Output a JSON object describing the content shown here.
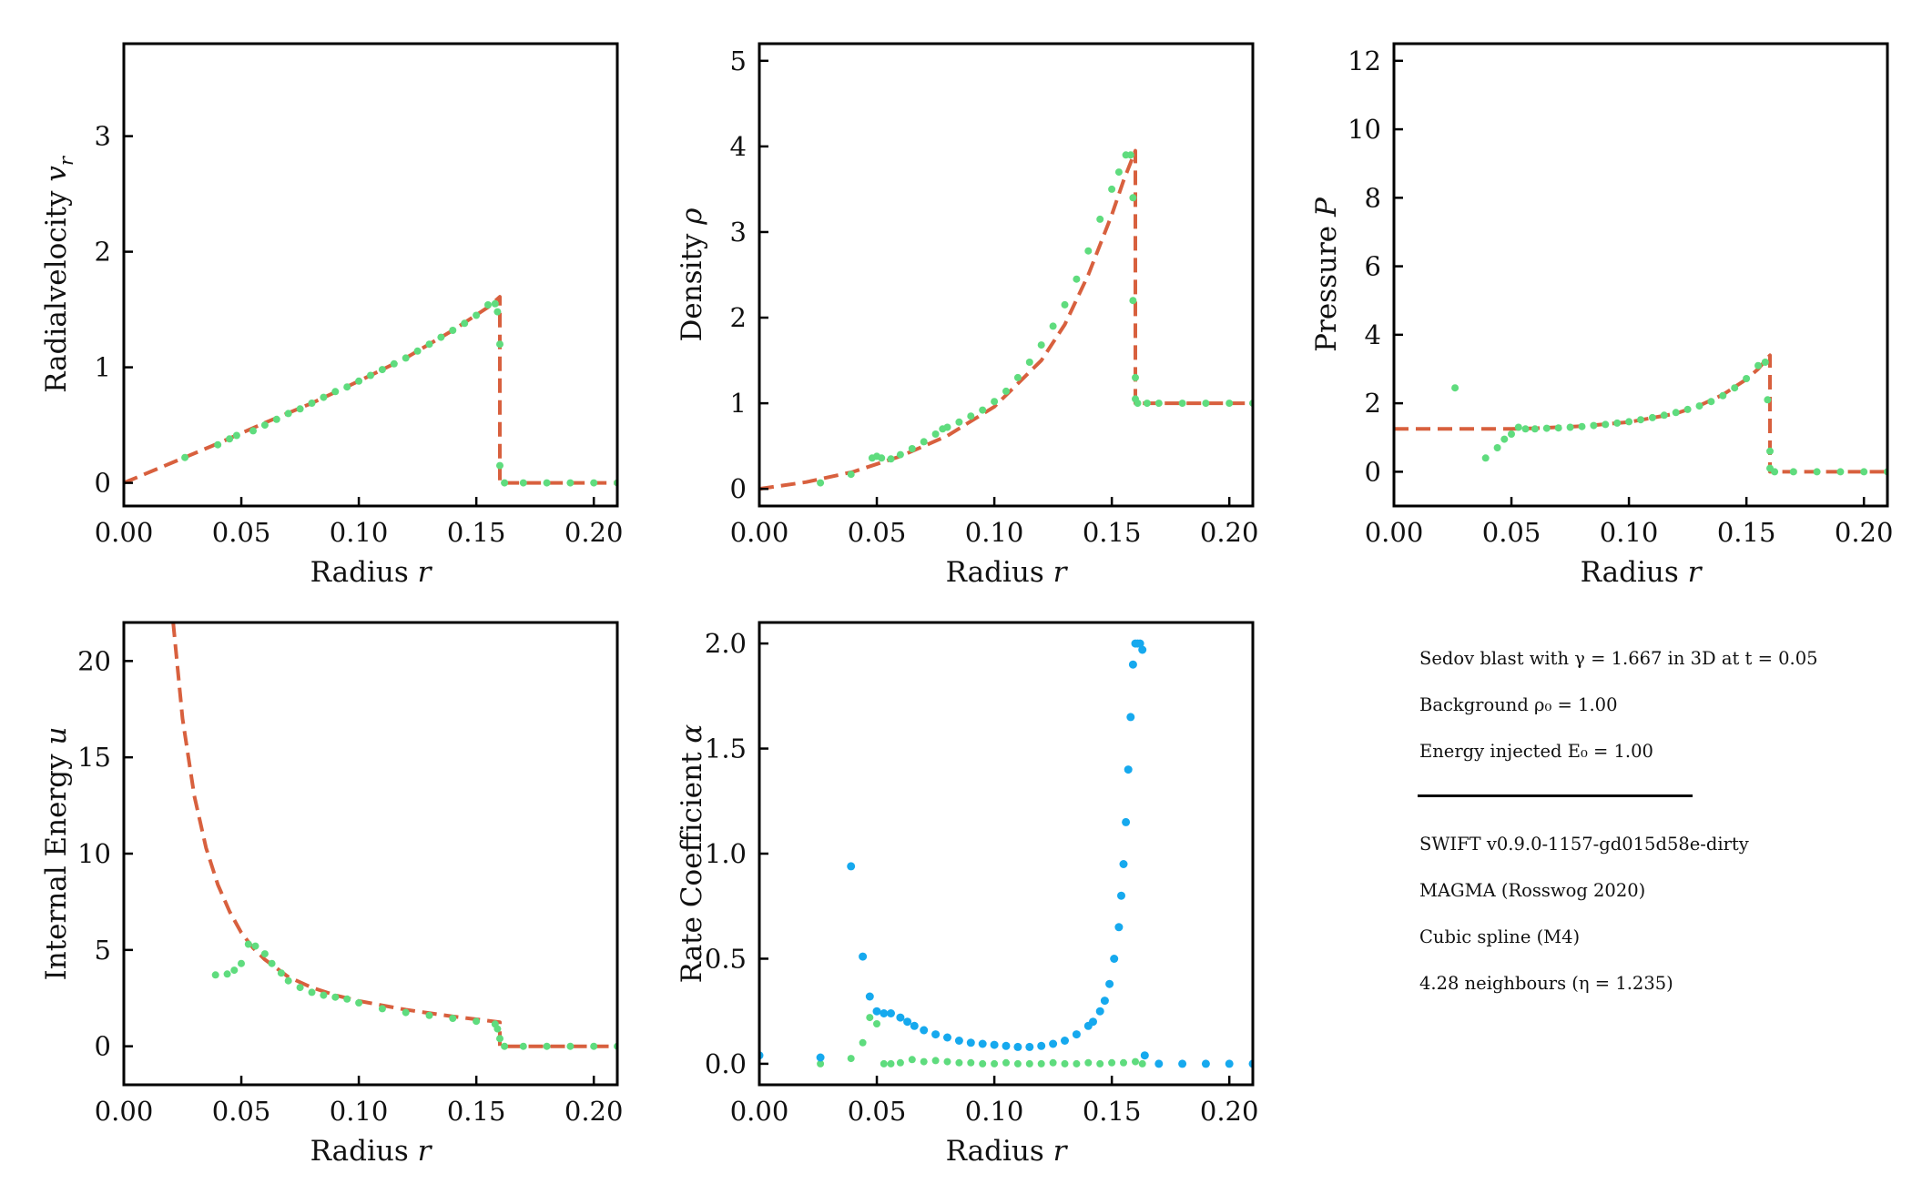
{
  "colors": {
    "analytic": "#d8603e",
    "simulation": "#5fdc7e",
    "alpha_points": "#16a9ee",
    "axes": "#000000"
  },
  "info": {
    "line1": "Sedov blast with  γ = 1.667 in 3D at t = 0.05",
    "line2": "Background ρ₀ = 1.00",
    "line3": "Energy injected E₀ = 1.00",
    "line4": "SWIFT v0.9.0-1157-gd015d58e-dirty",
    "line5": "MAGMA (Rosswog 2020)",
    "line6": "Cubic spline (M4)",
    "line7": "4.28 neighbours (η = 1.235)"
  },
  "chart_data": [
    {
      "type": "line",
      "id": "velocity",
      "xlabel": "Radius r",
      "ylabel": "Radialvelocity v",
      "ylabel_sub": "r",
      "xlim": [
        0,
        0.21
      ],
      "ylim": [
        -0.2,
        3.8
      ],
      "xticks": [
        "0.00",
        "0.05",
        "0.10",
        "0.15",
        "0.20"
      ],
      "xtick_values": [
        0,
        0.05,
        0.1,
        0.15,
        0.2
      ],
      "yticks": [
        "0",
        "1",
        "2",
        "3"
      ],
      "ytick_values": [
        0,
        1,
        2,
        3
      ],
      "analytic": {
        "x": [
          0,
          0.02,
          0.04,
          0.06,
          0.08,
          0.1,
          0.12,
          0.14,
          0.155,
          0.16,
          0.16,
          0.21
        ],
        "y": [
          0,
          0.17,
          0.34,
          0.52,
          0.69,
          0.88,
          1.08,
          1.32,
          1.52,
          1.61,
          0,
          0
        ]
      },
      "points": {
        "x": [
          0.026,
          0.04,
          0.045,
          0.048,
          0.055,
          0.06,
          0.065,
          0.07,
          0.075,
          0.08,
          0.085,
          0.09,
          0.095,
          0.1,
          0.105,
          0.11,
          0.115,
          0.12,
          0.125,
          0.13,
          0.135,
          0.14,
          0.145,
          0.15,
          0.155,
          0.158,
          0.159,
          0.16,
          0.16,
          0.162,
          0.17,
          0.18,
          0.19,
          0.2,
          0.21
        ],
        "y": [
          0.22,
          0.33,
          0.38,
          0.41,
          0.45,
          0.5,
          0.55,
          0.6,
          0.64,
          0.69,
          0.74,
          0.79,
          0.83,
          0.88,
          0.93,
          0.98,
          1.03,
          1.08,
          1.14,
          1.2,
          1.26,
          1.32,
          1.38,
          1.45,
          1.54,
          1.55,
          1.48,
          1.2,
          0.15,
          0,
          0,
          0,
          0,
          0,
          0
        ]
      }
    },
    {
      "type": "line",
      "id": "density",
      "xlabel": "Radius r",
      "ylabel": "Density ρ",
      "xlim": [
        0,
        0.21
      ],
      "ylim": [
        -0.2,
        5.2
      ],
      "xticks": [
        "0.00",
        "0.05",
        "0.10",
        "0.15",
        "0.20"
      ],
      "xtick_values": [
        0,
        0.05,
        0.1,
        0.15,
        0.2
      ],
      "yticks": [
        "0",
        "1",
        "2",
        "3",
        "4",
        "5"
      ],
      "ytick_values": [
        0,
        1,
        2,
        3,
        4,
        5
      ],
      "analytic": {
        "x": [
          0,
          0.02,
          0.04,
          0.06,
          0.08,
          0.1,
          0.12,
          0.13,
          0.14,
          0.15,
          0.155,
          0.16,
          0.16,
          0.21
        ],
        "y": [
          0,
          0.08,
          0.2,
          0.38,
          0.62,
          0.96,
          1.5,
          1.92,
          2.5,
          3.2,
          3.6,
          3.95,
          1,
          1
        ]
      },
      "points": {
        "x": [
          0.026,
          0.039,
          0.048,
          0.05,
          0.052,
          0.056,
          0.06,
          0.065,
          0.07,
          0.075,
          0.078,
          0.08,
          0.085,
          0.09,
          0.095,
          0.1,
          0.105,
          0.11,
          0.115,
          0.12,
          0.125,
          0.13,
          0.135,
          0.14,
          0.145,
          0.15,
          0.153,
          0.156,
          0.158,
          0.159,
          0.159,
          0.16,
          0.16,
          0.161,
          0.165,
          0.17,
          0.18,
          0.19,
          0.2,
          0.21
        ],
        "y": [
          0.07,
          0.17,
          0.36,
          0.38,
          0.36,
          0.35,
          0.4,
          0.47,
          0.55,
          0.64,
          0.7,
          0.72,
          0.78,
          0.85,
          0.92,
          1.02,
          1.14,
          1.3,
          1.48,
          1.68,
          1.9,
          2.15,
          2.45,
          2.78,
          3.15,
          3.5,
          3.7,
          3.9,
          3.9,
          3.4,
          2.2,
          1.3,
          1.05,
          1,
          1,
          1,
          1,
          1,
          1,
          1
        ]
      }
    },
    {
      "type": "line",
      "id": "pressure",
      "xlabel": "Radius r",
      "ylabel": "Pressure P",
      "xlim": [
        0,
        0.21
      ],
      "ylim": [
        -1,
        12.5
      ],
      "xticks": [
        "0.00",
        "0.05",
        "0.10",
        "0.15",
        "0.20"
      ],
      "xtick_values": [
        0,
        0.05,
        0.1,
        0.15,
        0.2
      ],
      "yticks": [
        "0",
        "2",
        "4",
        "6",
        "8",
        "10",
        "12"
      ],
      "ytick_values": [
        0,
        2,
        4,
        6,
        8,
        10,
        12
      ],
      "analytic": {
        "x": [
          0,
          0.04,
          0.05,
          0.06,
          0.08,
          0.1,
          0.12,
          0.13,
          0.14,
          0.15,
          0.155,
          0.16,
          0.16,
          0.21
        ],
        "y": [
          1.25,
          1.25,
          1.25,
          1.27,
          1.33,
          1.45,
          1.7,
          1.93,
          2.25,
          2.7,
          3.0,
          3.4,
          0,
          0
        ]
      },
      "points": {
        "x": [
          0.026,
          0.039,
          0.044,
          0.047,
          0.05,
          0.053,
          0.056,
          0.06,
          0.065,
          0.07,
          0.075,
          0.08,
          0.085,
          0.09,
          0.095,
          0.1,
          0.105,
          0.11,
          0.115,
          0.12,
          0.125,
          0.13,
          0.135,
          0.14,
          0.145,
          0.15,
          0.155,
          0.158,
          0.159,
          0.16,
          0.16,
          0.162,
          0.17,
          0.18,
          0.19,
          0.2,
          0.21
        ],
        "y": [
          2.45,
          0.4,
          0.7,
          0.95,
          1.1,
          1.3,
          1.25,
          1.25,
          1.27,
          1.28,
          1.3,
          1.32,
          1.35,
          1.38,
          1.42,
          1.46,
          1.52,
          1.58,
          1.65,
          1.73,
          1.82,
          1.92,
          2.05,
          2.22,
          2.45,
          2.72,
          3.1,
          3.2,
          2.1,
          0.6,
          0.1,
          0,
          0,
          0,
          0,
          0,
          0
        ]
      }
    },
    {
      "type": "line",
      "id": "energy",
      "xlabel": "Radius r",
      "ylabel": "Internal Energy u",
      "xlim": [
        0,
        0.21
      ],
      "ylim": [
        -2,
        22
      ],
      "xticks": [
        "0.00",
        "0.05",
        "0.10",
        "0.15",
        "0.20"
      ],
      "xtick_values": [
        0,
        0.05,
        0.1,
        0.15,
        0.2
      ],
      "yticks": [
        "0",
        "5",
        "10",
        "15",
        "20"
      ],
      "ytick_values": [
        0,
        5,
        10,
        15,
        20
      ],
      "analytic": {
        "x": [
          0.021,
          0.025,
          0.03,
          0.035,
          0.04,
          0.045,
          0.05,
          0.055,
          0.06,
          0.07,
          0.08,
          0.09,
          0.1,
          0.12,
          0.14,
          0.16,
          0.16,
          0.21
        ],
        "y": [
          22,
          17,
          13.0,
          10.3,
          8.4,
          7.0,
          5.9,
          5.1,
          4.5,
          3.6,
          3.05,
          2.65,
          2.35,
          1.9,
          1.55,
          1.25,
          0,
          0
        ]
      },
      "points": {
        "x": [
          0.039,
          0.044,
          0.047,
          0.05,
          0.053,
          0.056,
          0.06,
          0.063,
          0.067,
          0.07,
          0.075,
          0.08,
          0.085,
          0.09,
          0.095,
          0.1,
          0.11,
          0.12,
          0.13,
          0.14,
          0.15,
          0.158,
          0.159,
          0.16,
          0.162,
          0.17,
          0.18,
          0.19,
          0.2,
          0.21
        ],
        "y": [
          3.7,
          3.75,
          3.95,
          4.3,
          5.3,
          5.2,
          4.8,
          4.3,
          3.8,
          3.4,
          3.05,
          2.8,
          2.65,
          2.55,
          2.45,
          2.25,
          1.95,
          1.75,
          1.6,
          1.45,
          1.3,
          1.15,
          0.9,
          0.4,
          0,
          0,
          0,
          0,
          0,
          0
        ]
      }
    },
    {
      "type": "scatter",
      "id": "alpha",
      "xlabel": "Radius r",
      "ylabel": "Rate Coefficient α",
      "xlim": [
        0,
        0.21
      ],
      "ylim": [
        -0.1,
        2.1
      ],
      "xticks": [
        "0.00",
        "0.05",
        "0.10",
        "0.15",
        "0.20"
      ],
      "xtick_values": [
        0,
        0.05,
        0.1,
        0.15,
        0.2
      ],
      "yticks": [
        "0.0",
        "0.5",
        "1.0",
        "1.5",
        "2.0"
      ],
      "ytick_values": [
        0,
        0.5,
        1,
        1.5,
        2
      ],
      "series_alpha": {
        "x": [
          0.0,
          0.026,
          0.039,
          0.044,
          0.047,
          0.05,
          0.053,
          0.056,
          0.06,
          0.063,
          0.066,
          0.07,
          0.075,
          0.08,
          0.085,
          0.09,
          0.095,
          0.1,
          0.105,
          0.11,
          0.115,
          0.12,
          0.125,
          0.13,
          0.135,
          0.14,
          0.142,
          0.145,
          0.147,
          0.149,
          0.151,
          0.153,
          0.154,
          0.155,
          0.156,
          0.157,
          0.158,
          0.159,
          0.16,
          0.161,
          0.162,
          0.163,
          0.164,
          0.17,
          0.18,
          0.19,
          0.2,
          0.21
        ],
        "y": [
          0.04,
          0.03,
          0.94,
          0.51,
          0.32,
          0.25,
          0.24,
          0.24,
          0.22,
          0.2,
          0.18,
          0.16,
          0.14,
          0.125,
          0.11,
          0.1,
          0.095,
          0.09,
          0.085,
          0.08,
          0.08,
          0.085,
          0.095,
          0.11,
          0.14,
          0.18,
          0.2,
          0.25,
          0.3,
          0.38,
          0.5,
          0.65,
          0.8,
          0.95,
          1.15,
          1.4,
          1.65,
          1.9,
          2.0,
          2.0,
          2.0,
          1.97,
          0.04,
          0,
          0,
          0,
          0,
          0
        ]
      },
      "series_beta": {
        "x": [
          0.026,
          0.039,
          0.044,
          0.047,
          0.05,
          0.053,
          0.056,
          0.06,
          0.065,
          0.07,
          0.075,
          0.08,
          0.085,
          0.09,
          0.095,
          0.1,
          0.105,
          0.11,
          0.115,
          0.12,
          0.125,
          0.13,
          0.135,
          0.14,
          0.145,
          0.15,
          0.155,
          0.16,
          0.163
        ],
        "y": [
          0.0,
          0.025,
          0.1,
          0.22,
          0.19,
          0.0,
          0.0,
          0.005,
          0.02,
          0.01,
          0.015,
          0.01,
          0.005,
          0.005,
          0.0,
          0.0,
          0.005,
          0.0,
          0.0,
          0.0,
          0.005,
          0.0,
          0.0,
          0.005,
          0.0,
          0.005,
          0.005,
          0.01,
          0.0
        ]
      }
    }
  ]
}
